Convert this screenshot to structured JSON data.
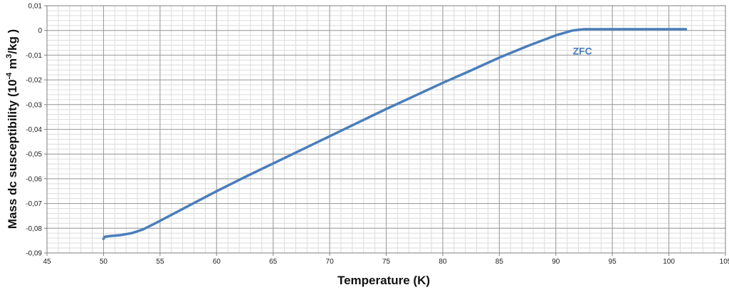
{
  "chart_data": {
    "type": "line",
    "xlabel": "Temperature (K)",
    "ylabel_parts": [
      "Mass dc susceptibility (10",
      "-4",
      " m",
      "3",
      "/kg )"
    ],
    "xlim": [
      45,
      105
    ],
    "ylim": [
      -0.09,
      0.01
    ],
    "x_ticks": [
      45,
      50,
      55,
      60,
      65,
      70,
      75,
      80,
      85,
      90,
      95,
      100,
      105
    ],
    "x_tick_labels": [
      "45",
      "50",
      "55",
      "60",
      "65",
      "70",
      "75",
      "80",
      "85",
      "90",
      "95",
      "100",
      "105"
    ],
    "y_ticks": [
      0.01,
      0,
      -0.01,
      -0.02,
      -0.03,
      -0.04,
      -0.05,
      -0.06,
      -0.07,
      -0.08,
      -0.09
    ],
    "y_tick_labels": [
      "0,01",
      "0",
      "-0,01",
      "-0,02",
      "-0,03",
      "-0,04",
      "-0,05",
      "-0,06",
      "-0,07",
      "-0,08",
      "-0,09"
    ],
    "grid": true,
    "minor_grid": true,
    "series": [
      {
        "name": "ZFC",
        "color": "#4a7ebb",
        "x": [
          50.0,
          50.1,
          50.5,
          51.5,
          52.5,
          53.5,
          55.0,
          57.5,
          60.0,
          62.5,
          65.0,
          67.5,
          70.0,
          72.5,
          75.0,
          77.5,
          80.0,
          82.5,
          85.0,
          87.5,
          90.0,
          91.5,
          92.5,
          93.0,
          95.0,
          97.5,
          100.0,
          101.5
        ],
        "y": [
          -0.0843,
          -0.0835,
          -0.0832,
          -0.0828,
          -0.082,
          -0.0805,
          -0.077,
          -0.071,
          -0.065,
          -0.0593,
          -0.0538,
          -0.0483,
          -0.0428,
          -0.0373,
          -0.0318,
          -0.0265,
          -0.0212,
          -0.0162,
          -0.011,
          -0.0063,
          -0.002,
          0.0,
          0.0005,
          0.0005,
          0.0005,
          0.0005,
          0.0005,
          0.0005
        ]
      }
    ],
    "annotations": [
      {
        "text": "ZFC",
        "x": 91.5,
        "y": -0.0083
      }
    ]
  }
}
